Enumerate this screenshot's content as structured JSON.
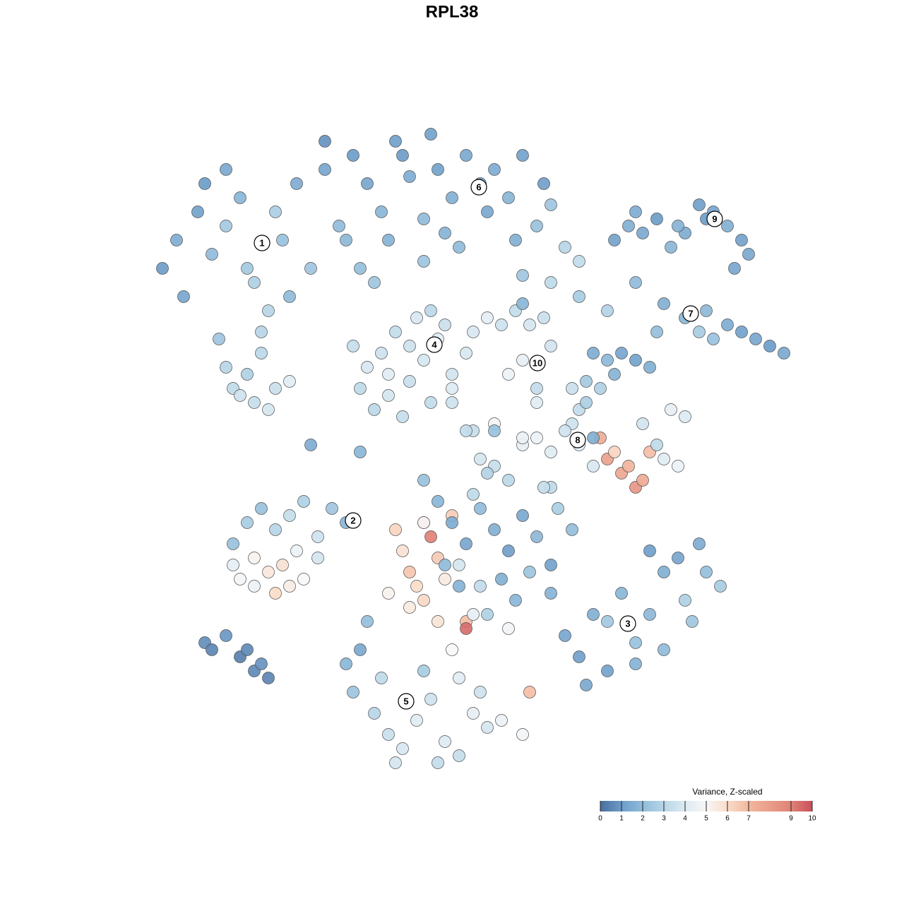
{
  "chart_data": {
    "type": "scatter",
    "title": "RPL38",
    "xlim": [
      0,
      95
    ],
    "ylim": [
      0,
      95
    ],
    "x": [
      3,
      5,
      8,
      10,
      12,
      14,
      16,
      18,
      20,
      22,
      6,
      9,
      12,
      15,
      17,
      19,
      21,
      24,
      26,
      28,
      11,
      12,
      13,
      14,
      15,
      16,
      17,
      18,
      19,
      21,
      30,
      32,
      34,
      36,
      38,
      40,
      42,
      44,
      46,
      48,
      50,
      52,
      54,
      56,
      58,
      60,
      62,
      35,
      40,
      45,
      26,
      29,
      31,
      33,
      37,
      41,
      43,
      49,
      53,
      57,
      67,
      69,
      71,
      73,
      75,
      77,
      79,
      81,
      83,
      85,
      86,
      84,
      80,
      76,
      70,
      58,
      62,
      66,
      70,
      74,
      77,
      79,
      81,
      83,
      85,
      87,
      89,
      91,
      80,
      73,
      64,
      66,
      68,
      70,
      72,
      63,
      65,
      67,
      62,
      61,
      30,
      32,
      34,
      36,
      38,
      40,
      42,
      44,
      46,
      31,
      33,
      35,
      37,
      39,
      41,
      43,
      35,
      38,
      41,
      44,
      47,
      49,
      51,
      53,
      55,
      57,
      58,
      54,
      56,
      52,
      48,
      50,
      52,
      54,
      56,
      58,
      60,
      62,
      64,
      58,
      65,
      66,
      67,
      68,
      69,
      70,
      71,
      72,
      74,
      76,
      75,
      77,
      71,
      73,
      63,
      61,
      56,
      54,
      50,
      47,
      15,
      17,
      19,
      21,
      23,
      25,
      27,
      29,
      13,
      16,
      13,
      14,
      16,
      18,
      19,
      20,
      21,
      22,
      23,
      25,
      36,
      37,
      38,
      39,
      40,
      41,
      42,
      43,
      44,
      45,
      35,
      38,
      40,
      42,
      46,
      46,
      47,
      48,
      49,
      44,
      40,
      42,
      44,
      46,
      48,
      50,
      52,
      54,
      56,
      58,
      43,
      45,
      47,
      49,
      51,
      53,
      55,
      57,
      59,
      61,
      60,
      62,
      64,
      66,
      68,
      70,
      72,
      74,
      76,
      78,
      80,
      82,
      66,
      70,
      74,
      77,
      63,
      58,
      72,
      79,
      30,
      33,
      35,
      37,
      39,
      41,
      43,
      45,
      47,
      49,
      29,
      31,
      34,
      36,
      40,
      42,
      45,
      48,
      51,
      54,
      9,
      10,
      12,
      14,
      15,
      16,
      17,
      18,
      24,
      31,
      44,
      46,
      50,
      54,
      54,
      40,
      52,
      55,
      64,
      32
    ],
    "y": [
      72,
      76,
      80,
      74,
      78,
      82,
      70,
      66,
      76,
      84,
      68,
      84,
      86,
      72,
      63,
      80,
      68,
      72,
      86,
      78,
      62,
      58,
      55,
      54,
      57,
      53,
      60,
      52,
      55,
      56,
      88,
      84,
      80,
      90,
      85,
      79,
      86,
      82,
      88,
      84,
      86,
      82,
      88,
      78,
      81,
      75,
      73,
      76,
      73,
      75,
      90,
      76,
      72,
      70,
      88,
      91,
      77,
      80,
      76,
      84,
      76,
      78,
      77,
      79,
      75,
      77,
      81,
      80,
      78,
      76,
      74,
      72,
      79,
      78,
      80,
      70,
      68,
      66,
      70,
      67,
      65,
      63,
      62,
      64,
      63,
      62,
      61,
      60,
      66,
      63,
      60,
      59,
      60,
      59,
      58,
      56,
      55,
      57,
      52,
      50,
      61,
      58,
      60,
      63,
      56,
      59,
      62,
      57,
      60,
      55,
      52,
      54,
      51,
      65,
      66,
      64,
      57,
      61,
      53,
      55,
      63,
      65,
      64,
      66,
      64,
      65,
      61,
      59,
      55,
      57,
      45,
      44,
      42,
      47,
      48,
      46,
      49,
      47,
      44,
      41,
      48,
      45,
      46,
      43,
      44,
      41,
      42,
      46,
      45,
      44,
      52,
      51,
      50,
      47,
      53,
      55,
      53,
      48,
      50,
      49,
      36,
      38,
      35,
      37,
      39,
      34,
      38,
      36,
      33,
      27,
      30,
      28,
      31,
      29,
      26,
      30,
      27,
      32,
      28,
      31,
      35,
      32,
      29,
      27,
      36,
      34,
      31,
      28,
      37,
      30,
      26,
      24,
      25,
      22,
      22,
      21,
      23,
      27,
      23,
      18,
      42,
      39,
      36,
      33,
      38,
      35,
      32,
      37,
      34,
      30,
      30,
      27,
      40,
      43,
      28,
      25,
      29,
      41,
      38,
      35,
      20,
      17,
      23,
      15,
      26,
      19,
      23,
      29,
      31,
      22,
      29,
      27,
      22,
      16,
      18,
      25,
      13,
      26,
      32,
      33,
      12,
      9,
      6,
      4,
      8,
      11,
      5,
      3,
      9,
      7,
      16,
      18,
      14,
      2,
      15,
      2,
      14,
      12,
      8,
      6,
      19,
      18,
      20,
      17,
      18,
      15,
      16,
      14,
      47,
      46,
      53,
      49,
      49,
      67,
      71,
      36,
      21,
      12,
      48,
      22
    ],
    "values": [
      1,
      1.5,
      1.2,
      2,
      2.5,
      1.8,
      2.8,
      3,
      2.2,
      1.5,
      1.3,
      1,
      1.4,
      2.5,
      3,
      2.7,
      2,
      2.4,
      1.3,
      2,
      2.4,
      3,
      3.2,
      3.6,
      2.8,
      3.4,
      3.1,
      3.8,
      3.5,
      4.2,
      1,
      1.3,
      1.8,
      1.1,
      1.5,
      2,
      1.2,
      1.6,
      1.4,
      1.3,
      1.5,
      1.8,
      1.2,
      2.2,
      2.4,
      3,
      3.3,
      1.7,
      2.3,
      2,
      0.8,
      1.9,
      2.1,
      2.4,
      1,
      1.2,
      1.7,
      1.4,
      1.6,
      1.1,
      1.2,
      1.6,
      1.4,
      1,
      1.8,
      1.5,
      1.1,
      1.3,
      1.6,
      1.2,
      1.4,
      1.3,
      1,
      1.7,
      1.5,
      3.2,
      2.6,
      2.9,
      2,
      1.6,
      1.8,
      2.6,
      2.2,
      1.5,
      1.2,
      1.3,
      1,
      1.4,
      1.9,
      2.1,
      1.5,
      1.9,
      1.3,
      1.2,
      1.6,
      2.5,
      2.8,
      1.7,
      3.3,
      3.6,
      3.4,
      3.9,
      3.6,
      3.3,
      3.5,
      3.8,
      4.1,
      3.7,
      3.9,
      3.2,
      3.1,
      3.8,
      3.4,
      3.9,
      3.1,
      3.5,
      4.2,
      3.6,
      3.3,
      4,
      3.9,
      4.3,
      3.6,
      3.3,
      3.8,
      3.5,
      3.7,
      4.4,
      3.3,
      4.6,
      3.8,
      3.4,
      3.1,
      4.4,
      4.6,
      4.1,
      3.6,
      4.3,
      3.9,
      3.2,
      7.4,
      7.8,
      6.2,
      7.6,
      7.1,
      8.2,
      7.5,
      6.8,
      4.2,
      4.6,
      4.4,
      4,
      3.7,
      3.2,
      2.7,
      3.5,
      4.1,
      4.5,
      4.8,
      3.4,
      2.6,
      2.2,
      3,
      3.4,
      2.8,
      3.6,
      2.4,
      1.8,
      2.2,
      4.6,
      4.4,
      4.8,
      5.2,
      5.6,
      6,
      5.8,
      5.4,
      4.6,
      5,
      3.8,
      6.2,
      5.8,
      6.6,
      6,
      8.3,
      9,
      6.5,
      5.5,
      6.4,
      3.8,
      5.2,
      5.5,
      6.1,
      5.7,
      6.8,
      9.4,
      4.4,
      3.3,
      2.8,
      5,
      2.2,
      1.8,
      1.5,
      1.3,
      2,
      1.6,
      1.1,
      1.4,
      1.9,
      1.2,
      2,
      1.7,
      3.2,
      2.9,
      1.6,
      1.8,
      2.3,
      3.4,
      2.7,
      2.1,
      1.3,
      1.1,
      1.6,
      1.2,
      1.8,
      2.2,
      1.9,
      1.6,
      1.3,
      2.4,
      2.1,
      2.6,
      2.5,
      1.7,
      2,
      2.8,
      1.4,
      1.7,
      1.1,
      1.5,
      2.3,
      3,
      3.5,
      3.9,
      4.2,
      3.6,
      4,
      3.4,
      4.4,
      3.8,
      1.8,
      1.4,
      3.2,
      3.8,
      2.6,
      3.3,
      4.1,
      3.6,
      4.5,
      4.8,
      0.7,
      0.5,
      0.9,
      0.4,
      0.6,
      0.6,
      0.8,
      0.5,
      1.5,
      1.8,
      3.6,
      3.3,
      2.2,
      1.8,
      2.4,
      5,
      4.8,
      6.8,
      1.6,
      2.1
    ],
    "clusters": [
      {
        "label": "1",
        "x": 17.1,
        "y": 75.6
      },
      {
        "label": "2",
        "x": 30,
        "y": 36.3
      },
      {
        "label": "3",
        "x": 68.9,
        "y": 21.7
      },
      {
        "label": "4",
        "x": 41.5,
        "y": 61.2
      },
      {
        "label": "5",
        "x": 37.5,
        "y": 10.7
      },
      {
        "label": "6",
        "x": 47.8,
        "y": 83.5
      },
      {
        "label": "7",
        "x": 77.8,
        "y": 65.6
      },
      {
        "label": "8",
        "x": 61.8,
        "y": 47.7
      },
      {
        "label": "9",
        "x": 81.2,
        "y": 79
      },
      {
        "label": "10",
        "x": 56.1,
        "y": 58.6
      }
    ],
    "legend_title": "Variance, Z-scaled",
    "clim": [
      0,
      10
    ],
    "cticks": [
      0,
      1,
      2,
      3,
      4,
      5,
      6,
      7,
      9,
      10
    ],
    "colorscale": [
      [
        0,
        "#4a6e9e"
      ],
      [
        1,
        "#6d9dc9"
      ],
      [
        2,
        "#90bcda"
      ],
      [
        3,
        "#b7d6e7"
      ],
      [
        4,
        "#dceaf2"
      ],
      [
        5,
        "#f7f7f7"
      ],
      [
        6,
        "#fadcc9"
      ],
      [
        7,
        "#f2b79e"
      ],
      [
        9,
        "#e08277"
      ],
      [
        10,
        "#c94f5c"
      ]
    ]
  }
}
